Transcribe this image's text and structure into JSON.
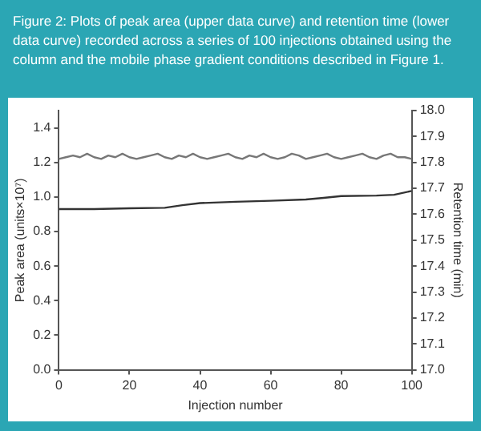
{
  "chart_data": {
    "type": "line",
    "title": "Figure 2: Plots of peak area (upper data curve) and retention time (lower data curve) recorded across a series of 100 injections obtained using the column and the mobile phase gradient conditions described in Figure 1.",
    "xlabel": "Injection number",
    "ylabel": "Peak area (units×10⁷)",
    "y2label": "Retention time (min)",
    "xlim": [
      0,
      100
    ],
    "xticks": [
      0,
      20,
      40,
      60,
      80,
      100
    ],
    "ylim": [
      0,
      1.5
    ],
    "yticks": [
      {
        "value": 0,
        "label": "0.0"
      },
      {
        "value": 0.2,
        "label": "0.2"
      },
      {
        "value": 0.4,
        "label": "0.4"
      },
      {
        "value": 0.6,
        "label": "0.6"
      },
      {
        "value": 0.8,
        "label": "0.8"
      },
      {
        "value": 1,
        "label": "1.0"
      },
      {
        "value": 1.2,
        "label": "1.2"
      },
      {
        "value": 1.4,
        "label": "1.4"
      }
    ],
    "y2lim": [
      17,
      18
    ],
    "y2ticks": [
      {
        "value": 17,
        "label": "17.0"
      },
      17.1,
      17.2,
      17.3,
      17.4,
      17.5,
      17.6,
      17.7,
      17.8,
      17.9,
      {
        "value": 18,
        "label": "18.0"
      }
    ],
    "grid": false,
    "legend": false,
    "marker": "none",
    "series": [
      {
        "color": "#777777",
        "x": [
          0,
          2,
          4,
          6,
          8,
          10,
          12,
          14,
          16,
          18,
          20,
          22,
          24,
          26,
          28,
          30,
          32,
          34,
          36,
          38,
          40,
          42,
          44,
          46,
          48,
          50,
          52,
          54,
          56,
          58,
          60,
          62,
          64,
          66,
          68,
          70,
          72,
          74,
          76,
          78,
          80,
          82,
          84,
          86,
          88,
          90,
          92,
          94,
          96,
          98,
          100
        ],
        "values": [
          1.22,
          1.23,
          1.24,
          1.23,
          1.25,
          1.23,
          1.22,
          1.24,
          1.23,
          1.25,
          1.23,
          1.22,
          1.23,
          1.24,
          1.25,
          1.23,
          1.22,
          1.24,
          1.23,
          1.25,
          1.23,
          1.22,
          1.23,
          1.24,
          1.25,
          1.23,
          1.22,
          1.24,
          1.23,
          1.25,
          1.23,
          1.22,
          1.23,
          1.25,
          1.24,
          1.22,
          1.23,
          1.24,
          1.25,
          1.23,
          1.22,
          1.23,
          1.24,
          1.25,
          1.23,
          1.22,
          1.24,
          1.25,
          1.23,
          1.23,
          1.22
        ]
      },
      {
        "color": "#333333",
        "axis": "y2",
        "x": [
          0,
          10,
          20,
          30,
          35,
          40,
          50,
          60,
          70,
          75,
          80,
          90,
          95,
          100
        ],
        "values": [
          17.62,
          17.62,
          17.623,
          17.625,
          17.635,
          17.643,
          17.648,
          17.652,
          17.657,
          17.663,
          17.67,
          17.672,
          17.675,
          17.69
        ]
      }
    ]
  }
}
